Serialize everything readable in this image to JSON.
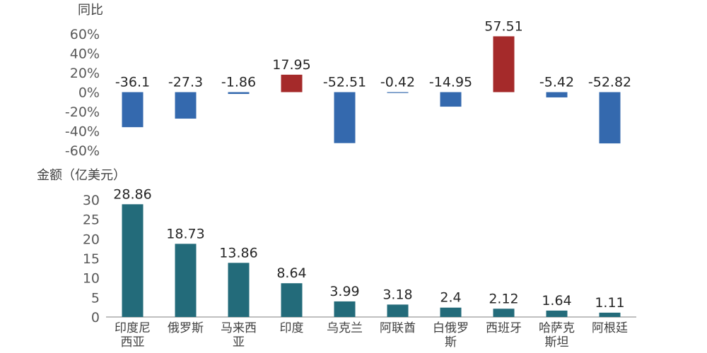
{
  "chart_data": [
    {
      "type": "bar",
      "title": "",
      "ylabel": "同比",
      "ylim": [
        -60,
        60
      ],
      "yticks": [
        60,
        40,
        20,
        0,
        -20,
        -40,
        -60
      ],
      "ytick_labels": [
        "60%",
        "40%",
        "20%",
        "0%",
        "-20%",
        "-40%",
        "-60%"
      ],
      "categories": [
        "印度尼西亚",
        "俄罗斯",
        "马来西亚",
        "印度",
        "乌克兰",
        "阿联酋",
        "白俄罗斯",
        "西班牙",
        "哈萨克斯坦",
        "阿根廷"
      ],
      "values": [
        -36.1,
        -27.3,
        -1.86,
        17.95,
        -52.51,
        -0.42,
        -14.95,
        57.51,
        -5.42,
        -52.82
      ],
      "data_labels": [
        "-36.1",
        "-27.3",
        "-1.86",
        "17.95",
        "-52.51",
        "-0.42",
        "-14.95",
        "57.51",
        "-5.42",
        "-52.82"
      ],
      "colors": {
        "negative": "#3469AE",
        "positive": "#A52A2A"
      }
    },
    {
      "type": "bar",
      "title": "",
      "ylabel": "金额（亿美元）",
      "ylim": [
        0,
        30
      ],
      "yticks": [
        30,
        25,
        20,
        15,
        10,
        5,
        0
      ],
      "ytick_labels": [
        "30",
        "25",
        "20",
        "15",
        "10",
        "5",
        "0"
      ],
      "categories": [
        "印度尼西亚",
        "俄罗斯",
        "马来西亚",
        "印度",
        "乌克兰",
        "阿联酋",
        "白俄罗斯",
        "西班牙",
        "哈萨克斯坦",
        "阿根廷"
      ],
      "category_label_lines": [
        [
          "印度尼",
          "西亚"
        ],
        [
          "俄罗斯"
        ],
        [
          "马来西",
          "亚"
        ],
        [
          "印度"
        ],
        [
          "乌克兰"
        ],
        [
          "阿联酋"
        ],
        [
          "白俄罗",
          "斯"
        ],
        [
          "西班牙"
        ],
        [
          "哈萨克",
          "斯坦"
        ],
        [
          "阿根廷"
        ]
      ],
      "values": [
        28.86,
        18.73,
        13.86,
        8.64,
        3.99,
        3.18,
        2.4,
        2.12,
        1.64,
        1.11
      ],
      "data_labels": [
        "28.86",
        "18.73",
        "13.86",
        "8.64",
        "3.99",
        "3.18",
        "2.4",
        "2.12",
        "1.64",
        "1.11"
      ],
      "colors": {
        "bar": "#236B7A"
      }
    }
  ]
}
